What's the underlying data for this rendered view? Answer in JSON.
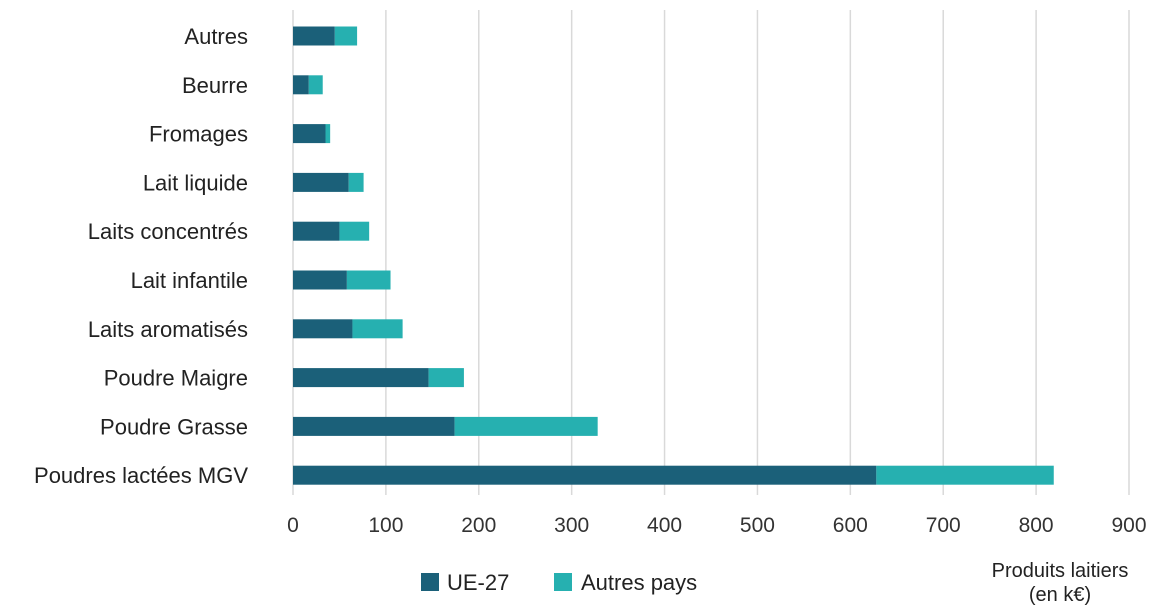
{
  "chart_data": {
    "type": "bar",
    "orientation": "horizontal",
    "stacked": true,
    "categories": [
      "Autres",
      "Beurre",
      "Fromages",
      "Lait liquide",
      "Laits concentrés",
      "Lait infantile",
      "Laits aromatisés",
      "Poudre Maigre",
      "Poudre Grasse",
      "Poudres lactées MGV"
    ],
    "series": [
      {
        "name": "UE-27",
        "color": "#1b6079",
        "values": [
          45,
          17,
          35,
          60,
          50,
          58,
          64,
          146,
          174,
          628
        ]
      },
      {
        "name": "Autres pays",
        "color": "#26b0b0",
        "values": [
          24,
          15,
          5,
          16,
          32,
          47,
          54,
          38,
          154,
          191
        ]
      }
    ],
    "xlim": [
      0,
      900
    ],
    "xticks": [
      "0",
      "100",
      "200",
      "300",
      "400",
      "500",
      "600",
      "700",
      "800",
      "900"
    ],
    "xlabel_line1": "Produits laitiers",
    "xlabel_line2": "(en k€)",
    "grid": "vertical",
    "legend_position": "bottom"
  }
}
